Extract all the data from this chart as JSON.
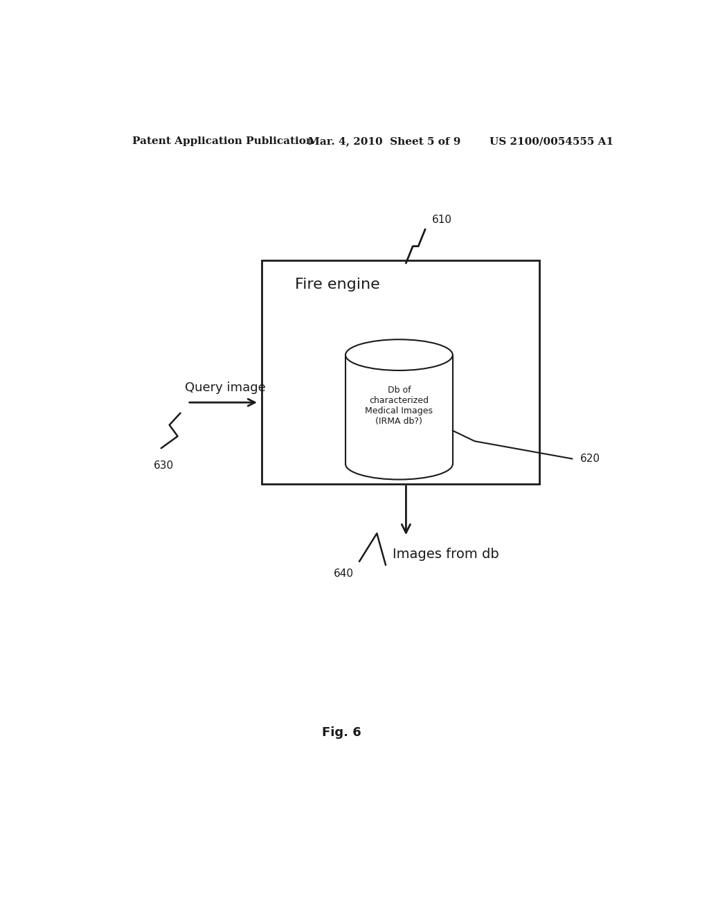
{
  "bg_color": "#ffffff",
  "header_left": "Patent Application Publication",
  "header_mid": "Mar. 4, 2010  Sheet 5 of 9",
  "header_right": "US 2100/0054555 A1",
  "fig_label": "Fig. 6",
  "fire_engine_label": "Fire engine",
  "db_label": "Db of\ncharacterized\nMedical Images\n(IRMA db?)",
  "query_image_label": "Query image",
  "images_from_db_label": "Images from db",
  "label_610": "610",
  "label_620": "620",
  "label_630": "630",
  "label_640": "640",
  "text_color": "#1a1a1a",
  "line_color": "#1a1a1a",
  "header_fontsize": 11,
  "body_fontsize": 13,
  "fig_label_fontsize": 13
}
